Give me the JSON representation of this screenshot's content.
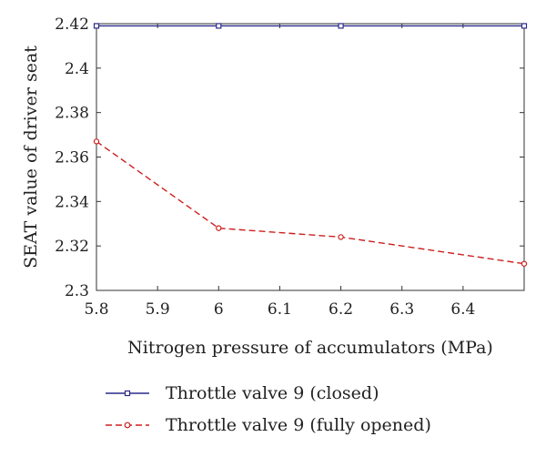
{
  "chart_data": {
    "type": "line",
    "xlabel": "Nitrogen pressure of accumulators (MPa)",
    "ylabel": "SEAT value of driver seat",
    "xlim": [
      5.8,
      6.5
    ],
    "ylim": [
      2.3,
      2.42
    ],
    "xticks": [
      5.8,
      5.9,
      6.0,
      6.1,
      6.2,
      6.3,
      6.4
    ],
    "xtick_labels": [
      "5.8",
      "5.9",
      "6",
      "6.1",
      "6.2",
      "6.3",
      "6.4"
    ],
    "yticks": [
      2.3,
      2.32,
      2.34,
      2.36,
      2.38,
      2.4,
      2.42
    ],
    "ytick_labels": [
      "2.3",
      "2.32",
      "2.34",
      "2.36",
      "2.38",
      "2.4",
      "2.42"
    ],
    "grid": false,
    "legend_position": "below",
    "series": [
      {
        "name": "Throttle valve 9 (closed)",
        "color": "#2b2b8c",
        "line_style": "solid",
        "marker": "square",
        "x": [
          5.8,
          6.0,
          6.2,
          6.5
        ],
        "y": [
          2.419,
          2.419,
          2.419,
          2.419
        ]
      },
      {
        "name": "Throttle valve 9 (fully opened)",
        "color": "#cc1f1f",
        "line_style": "dashed",
        "marker": "circle",
        "x": [
          5.8,
          6.0,
          6.2,
          6.5
        ],
        "y": [
          2.367,
          2.328,
          2.324,
          2.312
        ]
      }
    ]
  }
}
